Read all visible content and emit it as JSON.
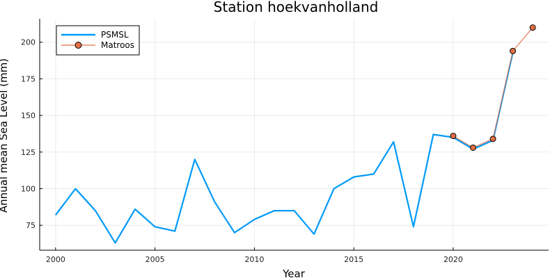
{
  "chart_data": {
    "type": "line",
    "title": "Station hoekvanholland",
    "xlabel": "Year",
    "ylabel": "Annual mean Sea Level (mm)",
    "xlim": [
      1999.2,
      2024.8
    ],
    "ylim": [
      58,
      216
    ],
    "xticks": [
      2000,
      2005,
      2010,
      2015,
      2020
    ],
    "yticks": [
      75,
      100,
      125,
      150,
      175,
      200
    ],
    "grid": true,
    "legend_position": "top-left",
    "series": [
      {
        "name": "PSMSL",
        "color": "#009af9",
        "marker": false,
        "x": [
          2000,
          2001,
          2002,
          2003,
          2004,
          2005,
          2006,
          2007,
          2008,
          2009,
          2010,
          2011,
          2012,
          2013,
          2014,
          2015,
          2016,
          2017,
          2018,
          2019,
          2020,
          2021,
          2022,
          2023
        ],
        "y": [
          82,
          100,
          85,
          63,
          86,
          74,
          71,
          120,
          91,
          70,
          79,
          85,
          85,
          69,
          100,
          108,
          110,
          132,
          74,
          137,
          135,
          127,
          133,
          193
        ]
      },
      {
        "name": "Matroos",
        "color": "#e26f46",
        "marker": true,
        "x": [
          2020,
          2021,
          2022,
          2023,
          2024
        ],
        "y": [
          136,
          128,
          134,
          194,
          210
        ]
      }
    ]
  }
}
